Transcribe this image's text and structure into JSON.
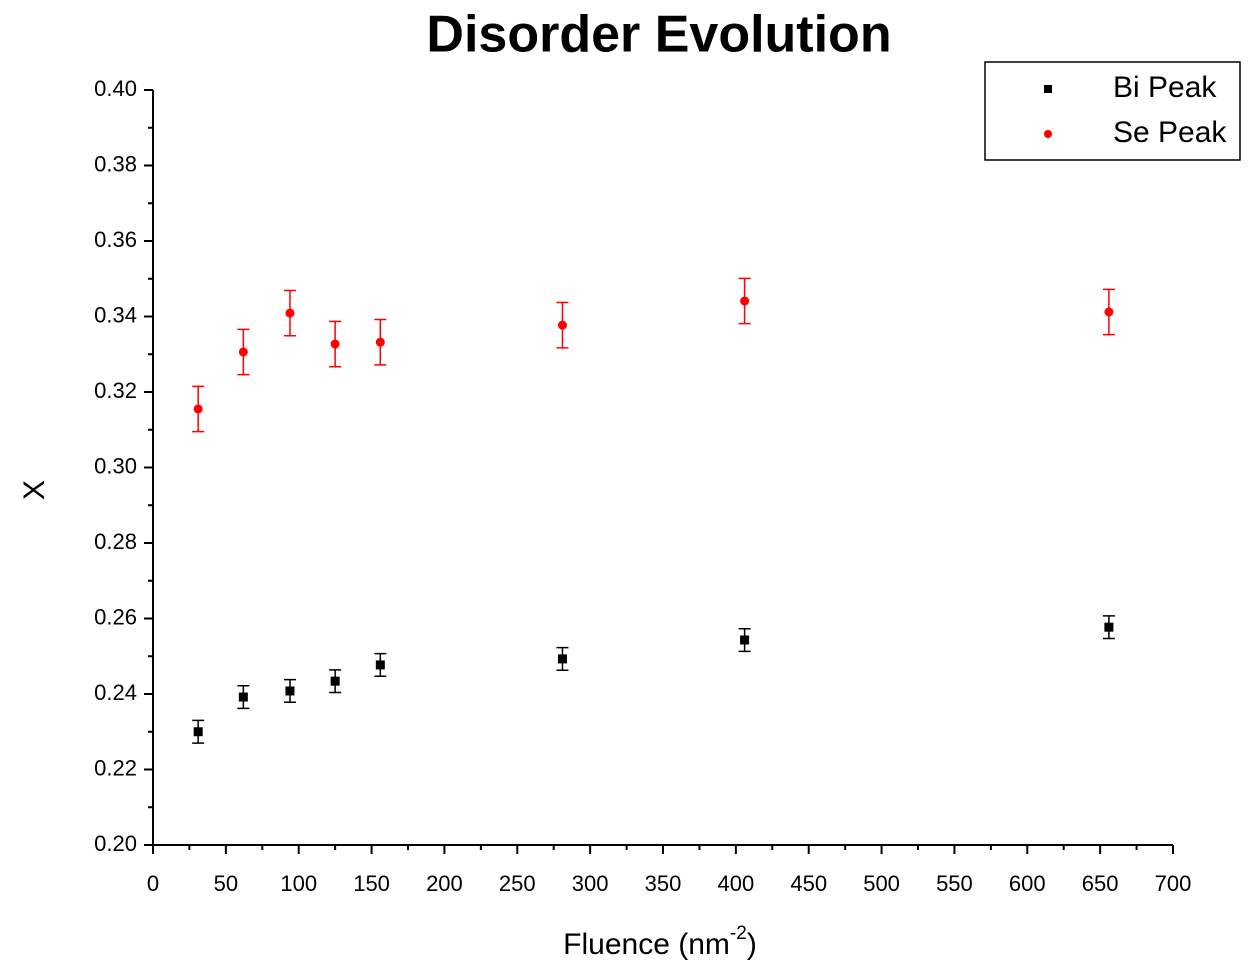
{
  "chart_data": {
    "type": "scatter",
    "title": "Disorder Evolution",
    "xlabel": "Fluence (nm",
    "xlabel_superscript": "-2",
    "xlabel_end": ")",
    "ylabel": "X",
    "x": [
      31,
      62,
      94,
      125,
      156,
      281,
      406,
      656
    ],
    "series": [
      {
        "name": "Bi Peak",
        "color": "#000000",
        "marker": "square",
        "values": [
          0.23,
          0.2392,
          0.2408,
          0.2434,
          0.2477,
          0.2493,
          0.2543,
          0.2577
        ],
        "errors": [
          0.003,
          0.003,
          0.003,
          0.003,
          0.003,
          0.003,
          0.003,
          0.003
        ]
      },
      {
        "name": "Se Peak",
        "color": "#ff0000",
        "marker": "circle",
        "values": [
          0.3155,
          0.3306,
          0.3409,
          0.3327,
          0.3332,
          0.3377,
          0.3441,
          0.3412
        ],
        "errors": [
          0.006,
          0.006,
          0.006,
          0.006,
          0.006,
          0.006,
          0.006,
          0.006
        ]
      }
    ],
    "xlim": [
      0,
      700
    ],
    "xticks": [
      0,
      50,
      100,
      150,
      200,
      250,
      300,
      350,
      400,
      450,
      500,
      550,
      600,
      650,
      700
    ],
    "ylim": [
      0.2,
      0.4
    ],
    "yticks": [
      {
        "value": 0.2,
        "label": "0.20"
      },
      {
        "value": 0.22,
        "label": "0.22"
      },
      {
        "value": 0.24,
        "label": "0.24"
      },
      {
        "value": 0.26,
        "label": "0.26"
      },
      {
        "value": 0.28,
        "label": "0.28"
      },
      {
        "value": 0.3,
        "label": "0.30"
      },
      {
        "value": 0.32,
        "label": "0.32"
      },
      {
        "value": 0.34,
        "label": "0.34"
      },
      {
        "value": 0.36,
        "label": "0.36"
      },
      {
        "value": 0.38,
        "label": "0.38"
      },
      {
        "value": 0.4,
        "label": "0.40"
      }
    ],
    "legend": "top-right",
    "grid": false
  }
}
